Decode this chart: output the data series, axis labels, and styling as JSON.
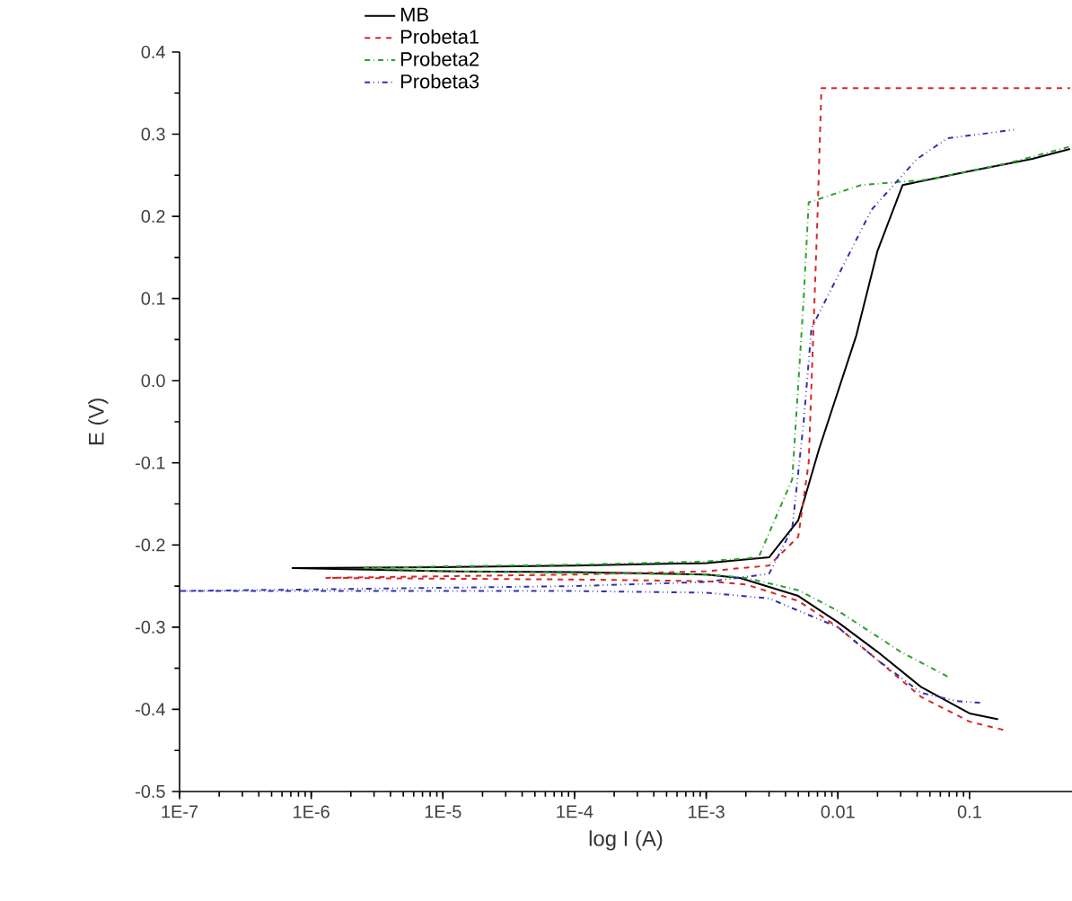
{
  "chart_data": {
    "type": "line",
    "xlabel": "log I (A)",
    "ylabel": "E (V)",
    "log": "x",
    "xlim": [
      1e-07,
      0.6
    ],
    "ylim": [
      -0.5,
      0.4
    ],
    "xticks": [
      {
        "value": 1e-07,
        "label": "1E-7"
      },
      {
        "value": 1e-06,
        "label": "1E-6"
      },
      {
        "value": 1e-05,
        "label": "1E-5"
      },
      {
        "value": 0.0001,
        "label": "1E-4"
      },
      {
        "value": 0.001,
        "label": "1E-3"
      },
      0.01,
      0.1
    ],
    "yticks": [
      -0.5,
      -0.4,
      -0.3,
      -0.2,
      -0.1,
      {
        "value": 0,
        "label": "0.0"
      },
      0.1,
      0.2,
      0.3,
      0.4
    ],
    "legend": "top left",
    "series": [
      {
        "name": "MB",
        "color": "#000000",
        "line_style": "solid",
        "x": [
          0.165,
          0.1,
          0.043,
          0.02,
          0.01,
          0.005,
          0.0018,
          0.001,
          0.0001,
          1e-05,
          7.2e-07,
          1e-05,
          0.0001,
          0.001,
          0.003,
          0.005,
          0.0072,
          0.0138,
          0.02,
          0.031,
          0.1,
          0.3,
          0.58
        ],
        "values": [
          -0.412,
          -0.405,
          -0.373,
          -0.33,
          -0.294,
          -0.262,
          -0.24,
          -0.236,
          -0.233,
          -0.232,
          -0.228,
          -0.227,
          -0.225,
          -0.222,
          -0.215,
          -0.17,
          -0.083,
          0.055,
          0.158,
          0.238,
          0.255,
          0.27,
          0.282
        ]
      },
      {
        "name": "Probeta1",
        "color": "#d62728",
        "line_style": "dashed",
        "x": [
          0.18,
          0.1,
          0.043,
          0.02,
          0.01,
          0.005,
          0.002,
          0.001,
          0.0001,
          1e-05,
          1.3e-06,
          1e-05,
          0.0001,
          0.001,
          0.003,
          0.005,
          0.006,
          0.007,
          0.0075,
          0.58
        ],
        "values": [
          -0.425,
          -0.415,
          -0.385,
          -0.34,
          -0.3,
          -0.268,
          -0.248,
          -0.244,
          -0.242,
          -0.241,
          -0.24,
          -0.238,
          -0.236,
          -0.232,
          -0.225,
          -0.19,
          -0.1,
          0.2,
          0.356,
          0.356
        ]
      },
      {
        "name": "Probeta2",
        "color": "#2ca02c",
        "line_style": "dashdot",
        "x": [
          0.068,
          0.03,
          0.01,
          0.005,
          0.002,
          0.001,
          0.0001,
          1e-05,
          2.5e-06,
          1e-05,
          0.0001,
          0.001,
          0.0025,
          0.0045,
          0.0055,
          0.006,
          0.015,
          0.05,
          0.2,
          0.58
        ],
        "values": [
          -0.36,
          -0.33,
          -0.28,
          -0.255,
          -0.24,
          -0.236,
          -0.234,
          -0.232,
          -0.228,
          -0.226,
          -0.224,
          -0.22,
          -0.215,
          -0.12,
          0.1,
          0.217,
          0.238,
          0.245,
          0.265,
          0.285
        ]
      },
      {
        "name": "Probeta3",
        "color": "#3030b0",
        "line_style": "dashdotdot",
        "x": [
          0.12,
          0.08,
          0.043,
          0.02,
          0.01,
          0.003,
          0.001,
          0.0001,
          1e-07,
          1e-06,
          1e-05,
          0.0001,
          0.001,
          0.003,
          0.0045,
          0.0055,
          0.0063,
          0.018,
          0.04,
          0.068,
          0.15,
          0.23
        ],
        "values": [
          -0.392,
          -0.39,
          -0.38,
          -0.34,
          -0.3,
          -0.265,
          -0.258,
          -0.256,
          -0.256,
          -0.254,
          -0.252,
          -0.25,
          -0.245,
          -0.235,
          -0.18,
          -0.05,
          0.064,
          0.208,
          0.27,
          0.295,
          0.302,
          0.306
        ]
      }
    ]
  }
}
